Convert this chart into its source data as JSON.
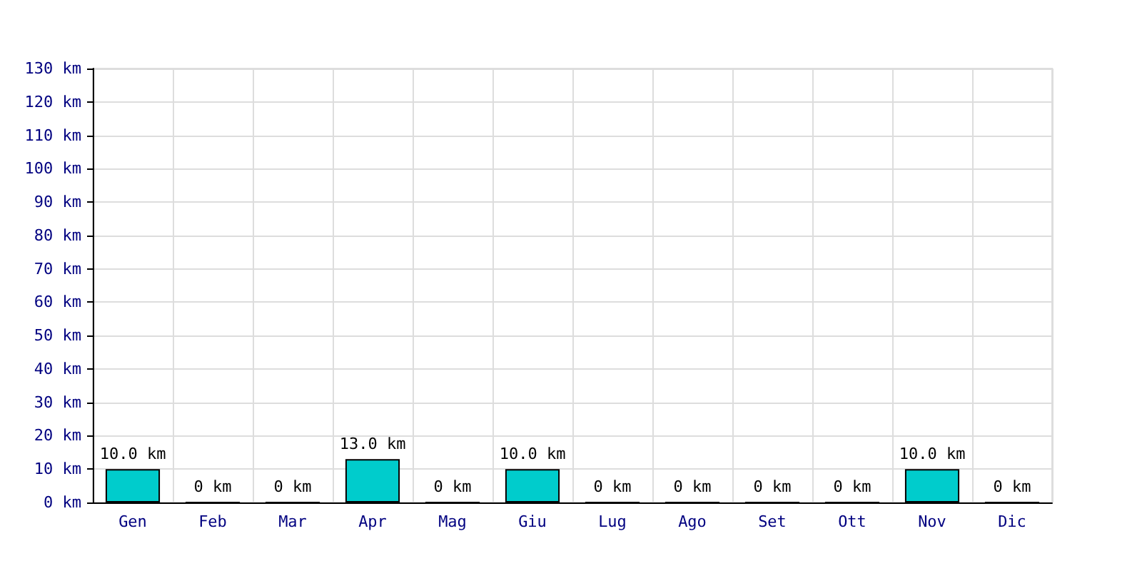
{
  "chart_data": {
    "type": "bar",
    "categories": [
      "Gen",
      "Feb",
      "Mar",
      "Apr",
      "Mag",
      "Giu",
      "Lug",
      "Ago",
      "Set",
      "Ott",
      "Nov",
      "Dic"
    ],
    "values": [
      10,
      0,
      0,
      13,
      0,
      10,
      0,
      0,
      0,
      0,
      10,
      0
    ],
    "value_labels": [
      "10.0 km",
      "0 km",
      "0 km",
      "13.0 km",
      "0 km",
      "10.0 km",
      "0 km",
      "0 km",
      "0 km",
      "0 km",
      "10.0 km",
      "0 km"
    ],
    "color": "#00cccc",
    "ylim": [
      0,
      130
    ],
    "yticks": [
      {
        "value": 0,
        "label": "0 km"
      },
      {
        "value": 10,
        "label": "10 km"
      },
      {
        "value": 20,
        "label": "20 km"
      },
      {
        "value": 30,
        "label": "30 km"
      },
      {
        "value": 40,
        "label": "40 km"
      },
      {
        "value": 50,
        "label": "50 km"
      },
      {
        "value": 60,
        "label": "60 km"
      },
      {
        "value": 70,
        "label": "70 km"
      },
      {
        "value": 80,
        "label": "80 km"
      },
      {
        "value": 90,
        "label": "90 km"
      },
      {
        "value": 100,
        "label": "100 km"
      },
      {
        "value": 110,
        "label": "110 km"
      },
      {
        "value": 120,
        "label": "120 km"
      },
      {
        "value": 130,
        "label": "130 km"
      }
    ],
    "grid": true
  }
}
